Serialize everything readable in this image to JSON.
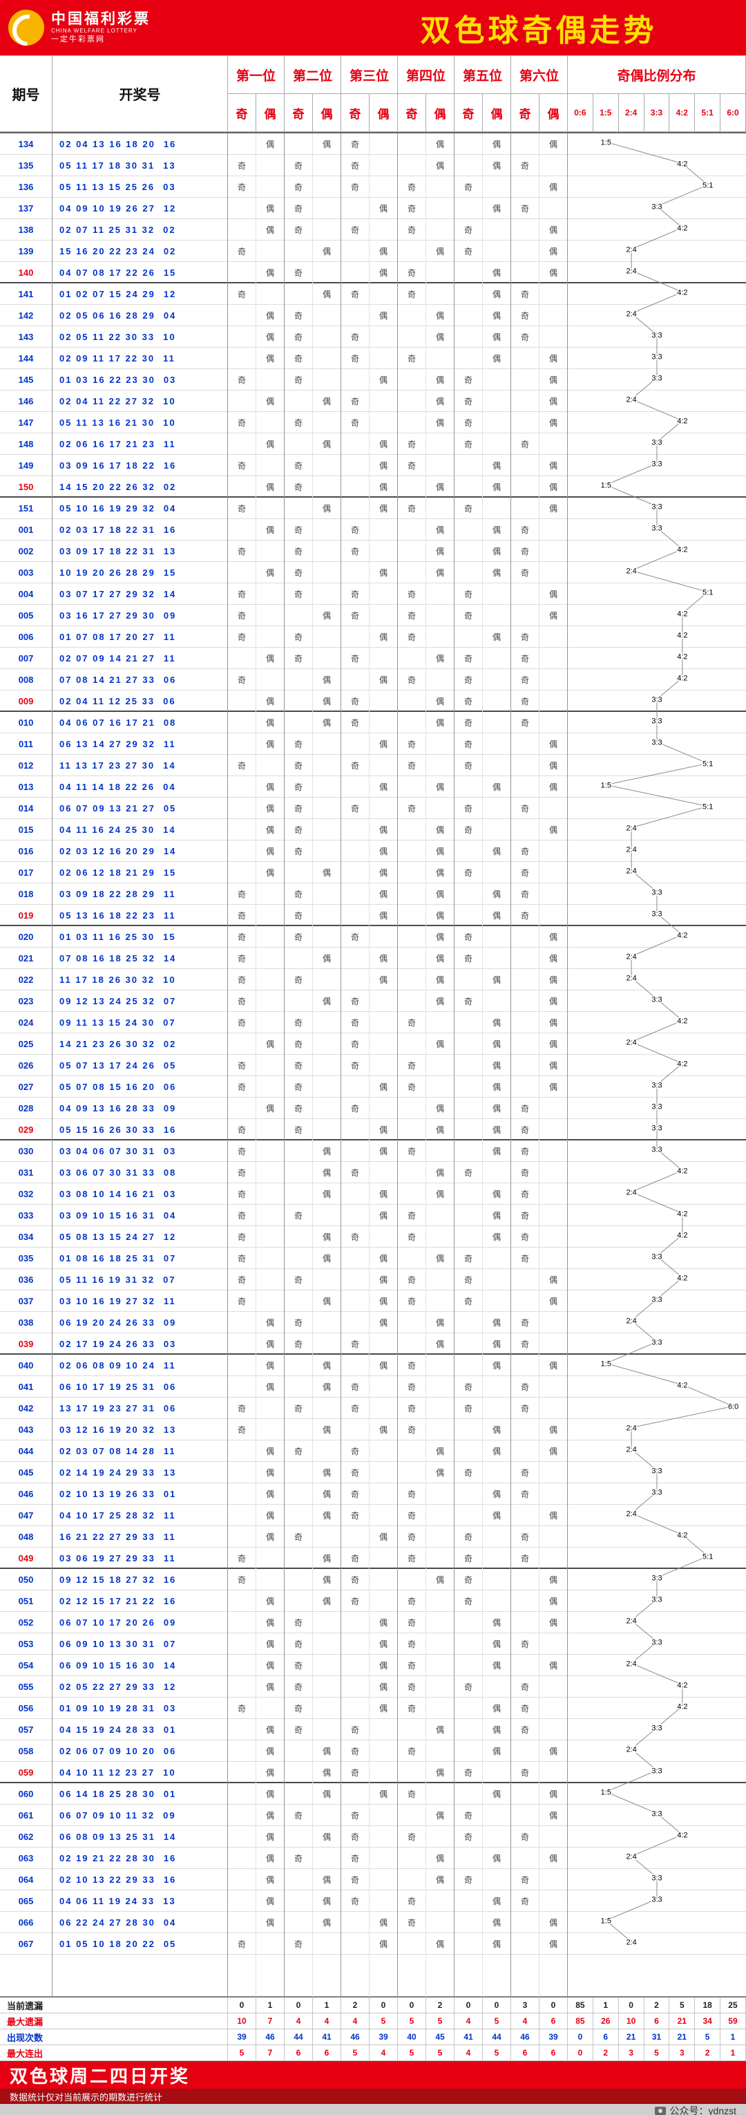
{
  "topbar": {
    "logo_cn": "中国福利彩票",
    "logo_en": "CHINA WELFARE LOTTERY",
    "logo_site": "一定牛彩票网",
    "title": "双色球奇偶走势"
  },
  "labels": {
    "odd": "奇",
    "even": "偶"
  },
  "chart_data": {
    "type": "table",
    "title": "双色球奇偶走势",
    "period_header": "期号",
    "numbers_header": "开奖号",
    "position_headers": [
      "第一位",
      "第二位",
      "第三位",
      "第四位",
      "第五位",
      "第六位"
    ],
    "odd_label": "奇",
    "even_label": "偶",
    "ratio_header": "奇偶比例分布",
    "ratio_columns": [
      "0:6",
      "1:5",
      "2:4",
      "3:3",
      "4:2",
      "5:1",
      "6:0"
    ],
    "rows": [
      {
        "p": "134",
        "n": "02 04 13 16 18 20",
        "b": "16"
      },
      {
        "p": "135",
        "n": "05 11 17 18 30 31",
        "b": "13"
      },
      {
        "p": "136",
        "n": "05 11 13 15 25 26",
        "b": "03"
      },
      {
        "p": "137",
        "n": "04 09 10 19 26 27",
        "b": "12"
      },
      {
        "p": "138",
        "n": "02 07 11 25 31 32",
        "b": "02"
      },
      {
        "p": "139",
        "n": "15 16 20 22 23 24",
        "b": "02"
      },
      {
        "p": "140",
        "n": "04 07 08 17 22 26",
        "b": "15",
        "hl": 1
      },
      {
        "p": "141",
        "n": "01 02 07 15 24 29",
        "b": "12"
      },
      {
        "p": "142",
        "n": "02 05 06 16 28 29",
        "b": "04"
      },
      {
        "p": "143",
        "n": "02 05 11 22 30 33",
        "b": "10"
      },
      {
        "p": "144",
        "n": "02 09 11 17 22 30",
        "b": "11"
      },
      {
        "p": "145",
        "n": "01 03 16 22 23 30",
        "b": "03"
      },
      {
        "p": "146",
        "n": "02 04 11 22 27 32",
        "b": "10"
      },
      {
        "p": "147",
        "n": "05 11 13 16 21 30",
        "b": "10"
      },
      {
        "p": "148",
        "n": "02 06 16 17 21 23",
        "b": "11"
      },
      {
        "p": "149",
        "n": "03 09 16 17 18 22",
        "b": "16"
      },
      {
        "p": "150",
        "n": "14 15 20 22 26 32",
        "b": "02",
        "hl": 1
      },
      {
        "p": "151",
        "n": "05 10 16 19 29 32",
        "b": "04"
      },
      {
        "p": "001",
        "n": "02 03 17 18 22 31",
        "b": "16"
      },
      {
        "p": "002",
        "n": "03 09 17 18 22 31",
        "b": "13"
      },
      {
        "p": "003",
        "n": "10 19 20 26 28 29",
        "b": "15"
      },
      {
        "p": "004",
        "n": "03 07 17 27 29 32",
        "b": "14"
      },
      {
        "p": "005",
        "n": "03 16 17 27 29 30",
        "b": "09"
      },
      {
        "p": "006",
        "n": "01 07 08 17 20 27",
        "b": "11"
      },
      {
        "p": "007",
        "n": "02 07 09 14 21 27",
        "b": "11"
      },
      {
        "p": "008",
        "n": "07 08 14 21 27 33",
        "b": "06"
      },
      {
        "p": "009",
        "n": "02 04 11 12 25 33",
        "b": "06",
        "hl": 1
      },
      {
        "p": "010",
        "n": "04 06 07 16 17 21",
        "b": "08"
      },
      {
        "p": "011",
        "n": "06 13 14 27 29 32",
        "b": "11"
      },
      {
        "p": "012",
        "n": "11 13 17 23 27 30",
        "b": "14"
      },
      {
        "p": "013",
        "n": "04 11 14 18 22 26",
        "b": "04"
      },
      {
        "p": "014",
        "n": "06 07 09 13 21 27",
        "b": "05"
      },
      {
        "p": "015",
        "n": "04 11 16 24 25 30",
        "b": "14"
      },
      {
        "p": "016",
        "n": "02 03 12 16 20 29",
        "b": "14"
      },
      {
        "p": "017",
        "n": "02 06 12 18 21 29",
        "b": "15"
      },
      {
        "p": "018",
        "n": "03 09 18 22 28 29",
        "b": "11"
      },
      {
        "p": "019",
        "n": "05 13 16 18 22 23",
        "b": "11",
        "hl": 1
      },
      {
        "p": "020",
        "n": "01 03 11 16 25 30",
        "b": "15"
      },
      {
        "p": "021",
        "n": "07 08 16 18 25 32",
        "b": "14"
      },
      {
        "p": "022",
        "n": "11 17 18 26 30 32",
        "b": "10"
      },
      {
        "p": "023",
        "n": "09 12 13 24 25 32",
        "b": "07"
      },
      {
        "p": "024",
        "n": "09 11 13 15 24 30",
        "b": "07"
      },
      {
        "p": "025",
        "n": "14 21 23 26 30 32",
        "b": "02"
      },
      {
        "p": "026",
        "n": "05 07 13 17 24 26",
        "b": "05"
      },
      {
        "p": "027",
        "n": "05 07 08 15 16 20",
        "b": "06"
      },
      {
        "p": "028",
        "n": "04 09 13 16 28 33",
        "b": "09"
      },
      {
        "p": "029",
        "n": "05 15 16 26 30 33",
        "b": "16",
        "hl": 1
      },
      {
        "p": "030",
        "n": "03 04 06 07 30 31",
        "b": "03"
      },
      {
        "p": "031",
        "n": "03 06 07 30 31 33",
        "b": "08"
      },
      {
        "p": "032",
        "n": "03 08 10 14 16 21",
        "b": "03"
      },
      {
        "p": "033",
        "n": "03 09 10 15 16 31",
        "b": "04"
      },
      {
        "p": "034",
        "n": "05 08 13 15 24 27",
        "b": "12"
      },
      {
        "p": "035",
        "n": "01 08 16 18 25 31",
        "b": "07"
      },
      {
        "p": "036",
        "n": "05 11 16 19 31 32",
        "b": "07"
      },
      {
        "p": "037",
        "n": "03 10 16 19 27 32",
        "b": "11"
      },
      {
        "p": "038",
        "n": "06 19 20 24 26 33",
        "b": "09"
      },
      {
        "p": "039",
        "n": "02 17 19 24 26 33",
        "b": "03",
        "hl": 1
      },
      {
        "p": "040",
        "n": "02 06 08 09 10 24",
        "b": "11"
      },
      {
        "p": "041",
        "n": "06 10 17 19 25 31",
        "b": "06"
      },
      {
        "p": "042",
        "n": "13 17 19 23 27 31",
        "b": "06"
      },
      {
        "p": "043",
        "n": "03 12 16 19 20 32",
        "b": "13"
      },
      {
        "p": "044",
        "n": "02 03 07 08 14 28",
        "b": "11"
      },
      {
        "p": "045",
        "n": "02 14 19 24 29 33",
        "b": "13"
      },
      {
        "p": "046",
        "n": "02 10 13 19 26 33",
        "b": "01"
      },
      {
        "p": "047",
        "n": "04 10 17 25 28 32",
        "b": "11"
      },
      {
        "p": "048",
        "n": "16 21 22 27 29 33",
        "b": "11"
      },
      {
        "p": "049",
        "n": "03 06 19 27 29 33",
        "b": "11",
        "hl": 1
      },
      {
        "p": "050",
        "n": "09 12 15 18 27 32",
        "b": "16"
      },
      {
        "p": "051",
        "n": "02 12 15 17 21 22",
        "b": "16"
      },
      {
        "p": "052",
        "n": "06 07 10 17 20 26",
        "b": "09"
      },
      {
        "p": "053",
        "n": "06 09 10 13 30 31",
        "b": "07"
      },
      {
        "p": "054",
        "n": "06 09 10 15 16 30",
        "b": "14"
      },
      {
        "p": "055",
        "n": "02 05 22 27 29 33",
        "b": "12"
      },
      {
        "p": "056",
        "n": "01 09 10 19 28 31",
        "b": "03"
      },
      {
        "p": "057",
        "n": "04 15 19 24 28 33",
        "b": "01"
      },
      {
        "p": "058",
        "n": "02 06 07 09 10 20",
        "b": "06"
      },
      {
        "p": "059",
        "n": "04 10 11 12 23 27",
        "b": "10",
        "hl": 1
      },
      {
        "p": "060",
        "n": "06 14 18 25 28 30",
        "b": "01"
      },
      {
        "p": "061",
        "n": "06 07 09 10 11 32",
        "b": "09"
      },
      {
        "p": "062",
        "n": "06 08 09 13 25 31",
        "b": "14"
      },
      {
        "p": "063",
        "n": "02 19 21 22 28 30",
        "b": "16"
      },
      {
        "p": "064",
        "n": "02 10 13 22 29 33",
        "b": "16"
      },
      {
        "p": "065",
        "n": "04 06 11 19 24 33",
        "b": "13"
      },
      {
        "p": "066",
        "n": "06 22 24 27 28 30",
        "b": "04"
      },
      {
        "p": "067",
        "n": "01 05 10 18 20 22",
        "b": "05"
      }
    ],
    "summary": [
      {
        "label": "当前遗漏",
        "cls": "k",
        "pos": [
          0,
          1,
          0,
          1,
          2,
          0,
          0,
          2,
          0,
          0,
          3,
          0
        ],
        "ratio": [
          85,
          1,
          0,
          2,
          5,
          18,
          25
        ]
      },
      {
        "label": "最大遗漏",
        "cls": "r",
        "pos": [
          10,
          7,
          4,
          4,
          4,
          5,
          5,
          5,
          4,
          5,
          4,
          6
        ],
        "ratio": [
          85,
          26,
          10,
          6,
          21,
          34,
          59
        ]
      },
      {
        "label": "出现次数",
        "cls": "b",
        "pos": [
          39,
          46,
          44,
          41,
          46,
          39,
          40,
          45,
          41,
          44,
          46,
          39
        ],
        "ratio": [
          0,
          6,
          21,
          31,
          21,
          5,
          1
        ]
      },
      {
        "label": "最大连出",
        "cls": "r",
        "pos": [
          5,
          7,
          6,
          6,
          5,
          4,
          5,
          5,
          4,
          5,
          6,
          6
        ],
        "ratio": [
          0,
          2,
          3,
          5,
          3,
          2,
          1
        ]
      }
    ]
  },
  "footer": {
    "title": "双色球周二四日开奖",
    "note": "数据统计仅对当前展示的期数进行统计",
    "account": "公众号：ydnzst"
  }
}
